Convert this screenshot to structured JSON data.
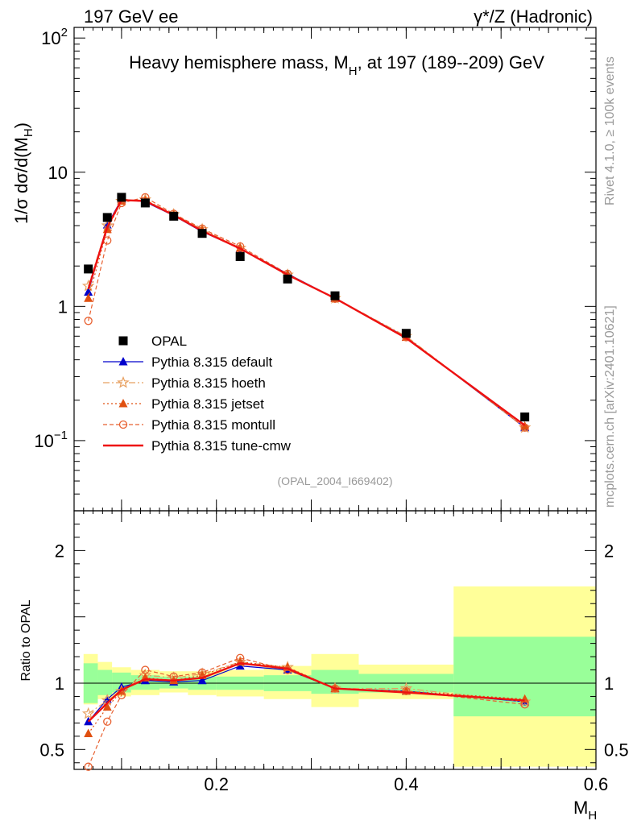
{
  "header": {
    "left": "197 GeV ee",
    "right": "γ*/Z (Hadronic)",
    "title": "Heavy hemisphere mass, M",
    "title_sub": "H",
    "title_rest": ", at 197 (189--209) GeV"
  },
  "side": {
    "rivet": "Rivet 4.1.0, ≥ 100k events",
    "mcplots": "mcplots.cern.ch [arXiv:2401.10621]"
  },
  "analysis_id": "(OPAL_2004_I669402)",
  "ylabel_main": "1/σ  dσ/d(M",
  "ylabel_main_sub": "H",
  "ylabel_main_close": ")",
  "ylabel_ratio": "Ratio to OPAL",
  "xlabel": "M",
  "xlabel_sub": "H",
  "colors": {
    "data": "#000000",
    "default": "#0000cc",
    "hoeth": "#e8a060",
    "jetset": "#e05010",
    "montull": "#e86030",
    "tunecmw": "#ee1111",
    "band_outer": "#ffff99",
    "band_inner": "#99ff99"
  },
  "chart_data": [
    {
      "type": "scatter",
      "title": "Heavy hemisphere mass, M_H, at 197 (189--209) GeV",
      "xlabel": "M_H",
      "ylabel": "1/σ dσ/d(M_H)",
      "yscale": "log",
      "xlim": [
        0.05,
        0.6
      ],
      "ylim": [
        0.03,
        120
      ],
      "y_ticks": [
        {
          "value": 0.1,
          "label": "10",
          "exp": "−1"
        },
        {
          "value": 1,
          "label": "1",
          "exp": ""
        },
        {
          "value": 10,
          "label": "10",
          "exp": ""
        },
        {
          "value": 100,
          "label": "10",
          "exp": "2"
        }
      ],
      "x": [
        0.065,
        0.085,
        0.1,
        0.125,
        0.155,
        0.185,
        0.225,
        0.275,
        0.325,
        0.4,
        0.525
      ],
      "series": [
        {
          "key": "data",
          "name": "OPAL",
          "values": [
            1.9,
            4.6,
            6.5,
            5.9,
            4.7,
            3.5,
            2.35,
            1.6,
            1.2,
            0.63,
            0.15
          ]
        },
        {
          "key": "default",
          "name": "Pythia 8.315 default",
          "values": [
            1.28,
            4.05,
            6.3,
            6.0,
            4.75,
            3.6,
            2.7,
            1.75,
            1.15,
            0.59,
            0.125
          ]
        },
        {
          "key": "hoeth",
          "name": "Pythia 8.315 hoeth",
          "values": [
            1.42,
            4.0,
            6.1,
            6.25,
            4.85,
            3.75,
            2.72,
            1.72,
            1.15,
            0.6,
            0.125
          ]
        },
        {
          "key": "jetset",
          "name": "Pythia 8.315 jetset",
          "values": [
            1.15,
            3.75,
            6.1,
            6.15,
            4.8,
            3.7,
            2.72,
            1.73,
            1.15,
            0.59,
            0.128
          ]
        },
        {
          "key": "montull",
          "name": "Pythia 8.315 montull",
          "values": [
            0.78,
            3.1,
            5.9,
            6.5,
            4.9,
            3.8,
            2.8,
            1.75,
            1.14,
            0.59,
            0.125
          ]
        },
        {
          "key": "tunecmw",
          "name": "Pythia 8.315 tune-cmw",
          "values": [
            1.35,
            3.9,
            6.2,
            6.1,
            4.8,
            3.65,
            2.7,
            1.72,
            1.15,
            0.58,
            0.13
          ]
        }
      ]
    },
    {
      "type": "line",
      "ylabel": "Ratio to OPAL",
      "xlabel": "M_H",
      "xlim": [
        0.05,
        0.6
      ],
      "ylim": [
        0.35,
        2.3
      ],
      "x_ticks": [
        0.2,
        0.4,
        0.6
      ],
      "x_tick_labels": [
        "0.2",
        "0.4",
        "0.6"
      ],
      "y_ticks": [
        0.5,
        1,
        2
      ],
      "y_tick_labels": [
        "0.5",
        "1",
        "2"
      ],
      "bins": [
        {
          "lo": 0.06,
          "hi": 0.075,
          "inner": [
            0.85,
            1.15
          ],
          "outer": [
            0.84,
            1.22
          ]
        },
        {
          "lo": 0.075,
          "hi": 0.09,
          "inner": [
            0.91,
            1.1
          ],
          "outer": [
            0.88,
            1.16
          ]
        },
        {
          "lo": 0.09,
          "hi": 0.11,
          "inner": [
            0.93,
            1.08
          ],
          "outer": [
            0.9,
            1.12
          ]
        },
        {
          "lo": 0.11,
          "hi": 0.14,
          "inner": [
            0.95,
            1.06
          ],
          "outer": [
            0.91,
            1.1
          ]
        },
        {
          "lo": 0.14,
          "hi": 0.17,
          "inner": [
            0.96,
            1.05
          ],
          "outer": [
            0.93,
            1.09
          ]
        },
        {
          "lo": 0.17,
          "hi": 0.2,
          "inner": [
            0.95,
            1.05
          ],
          "outer": [
            0.91,
            1.09
          ]
        },
        {
          "lo": 0.2,
          "hi": 0.25,
          "inner": [
            0.95,
            1.05
          ],
          "outer": [
            0.9,
            1.1
          ]
        },
        {
          "lo": 0.25,
          "hi": 0.3,
          "inner": [
            0.94,
            1.06
          ],
          "outer": [
            0.88,
            1.13
          ]
        },
        {
          "lo": 0.3,
          "hi": 0.35,
          "inner": [
            0.92,
            1.1
          ],
          "outer": [
            0.82,
            1.22
          ]
        },
        {
          "lo": 0.35,
          "hi": 0.45,
          "inner": [
            0.93,
            1.07
          ],
          "outer": [
            0.88,
            1.14
          ]
        },
        {
          "lo": 0.45,
          "hi": 0.6,
          "inner": [
            0.75,
            1.35
          ],
          "outer": [
            0.37,
            1.73
          ]
        }
      ],
      "x": [
        0.065,
        0.085,
        0.1,
        0.125,
        0.155,
        0.185,
        0.225,
        0.275,
        0.325,
        0.4,
        0.525
      ],
      "series": [
        {
          "key": "default",
          "name": "Pythia 8.315 default",
          "values": [
            0.71,
            0.88,
            0.97,
            1.02,
            1.01,
            1.02,
            1.13,
            1.1,
            0.96,
            0.94,
            0.86
          ]
        },
        {
          "key": "hoeth",
          "name": "Pythia 8.315 hoeth",
          "values": [
            0.77,
            0.87,
            0.94,
            1.06,
            1.04,
            1.07,
            1.16,
            1.12,
            0.96,
            0.96,
            0.86
          ]
        },
        {
          "key": "jetset",
          "name": "Pythia 8.315 jetset",
          "values": [
            0.62,
            0.82,
            0.94,
            1.04,
            1.02,
            1.06,
            1.16,
            1.12,
            0.96,
            0.94,
            0.88
          ]
        },
        {
          "key": "montull",
          "name": "Pythia 8.315 montull",
          "values": [
            0.37,
            0.71,
            0.91,
            1.1,
            1.05,
            1.08,
            1.19,
            1.1,
            0.96,
            0.94,
            0.84
          ]
        },
        {
          "key": "tunecmw",
          "name": "Pythia 8.315 tune-cmw",
          "values": [
            0.71,
            0.85,
            0.95,
            1.03,
            1.02,
            1.04,
            1.15,
            1.11,
            0.96,
            0.93,
            0.87
          ]
        }
      ]
    }
  ]
}
